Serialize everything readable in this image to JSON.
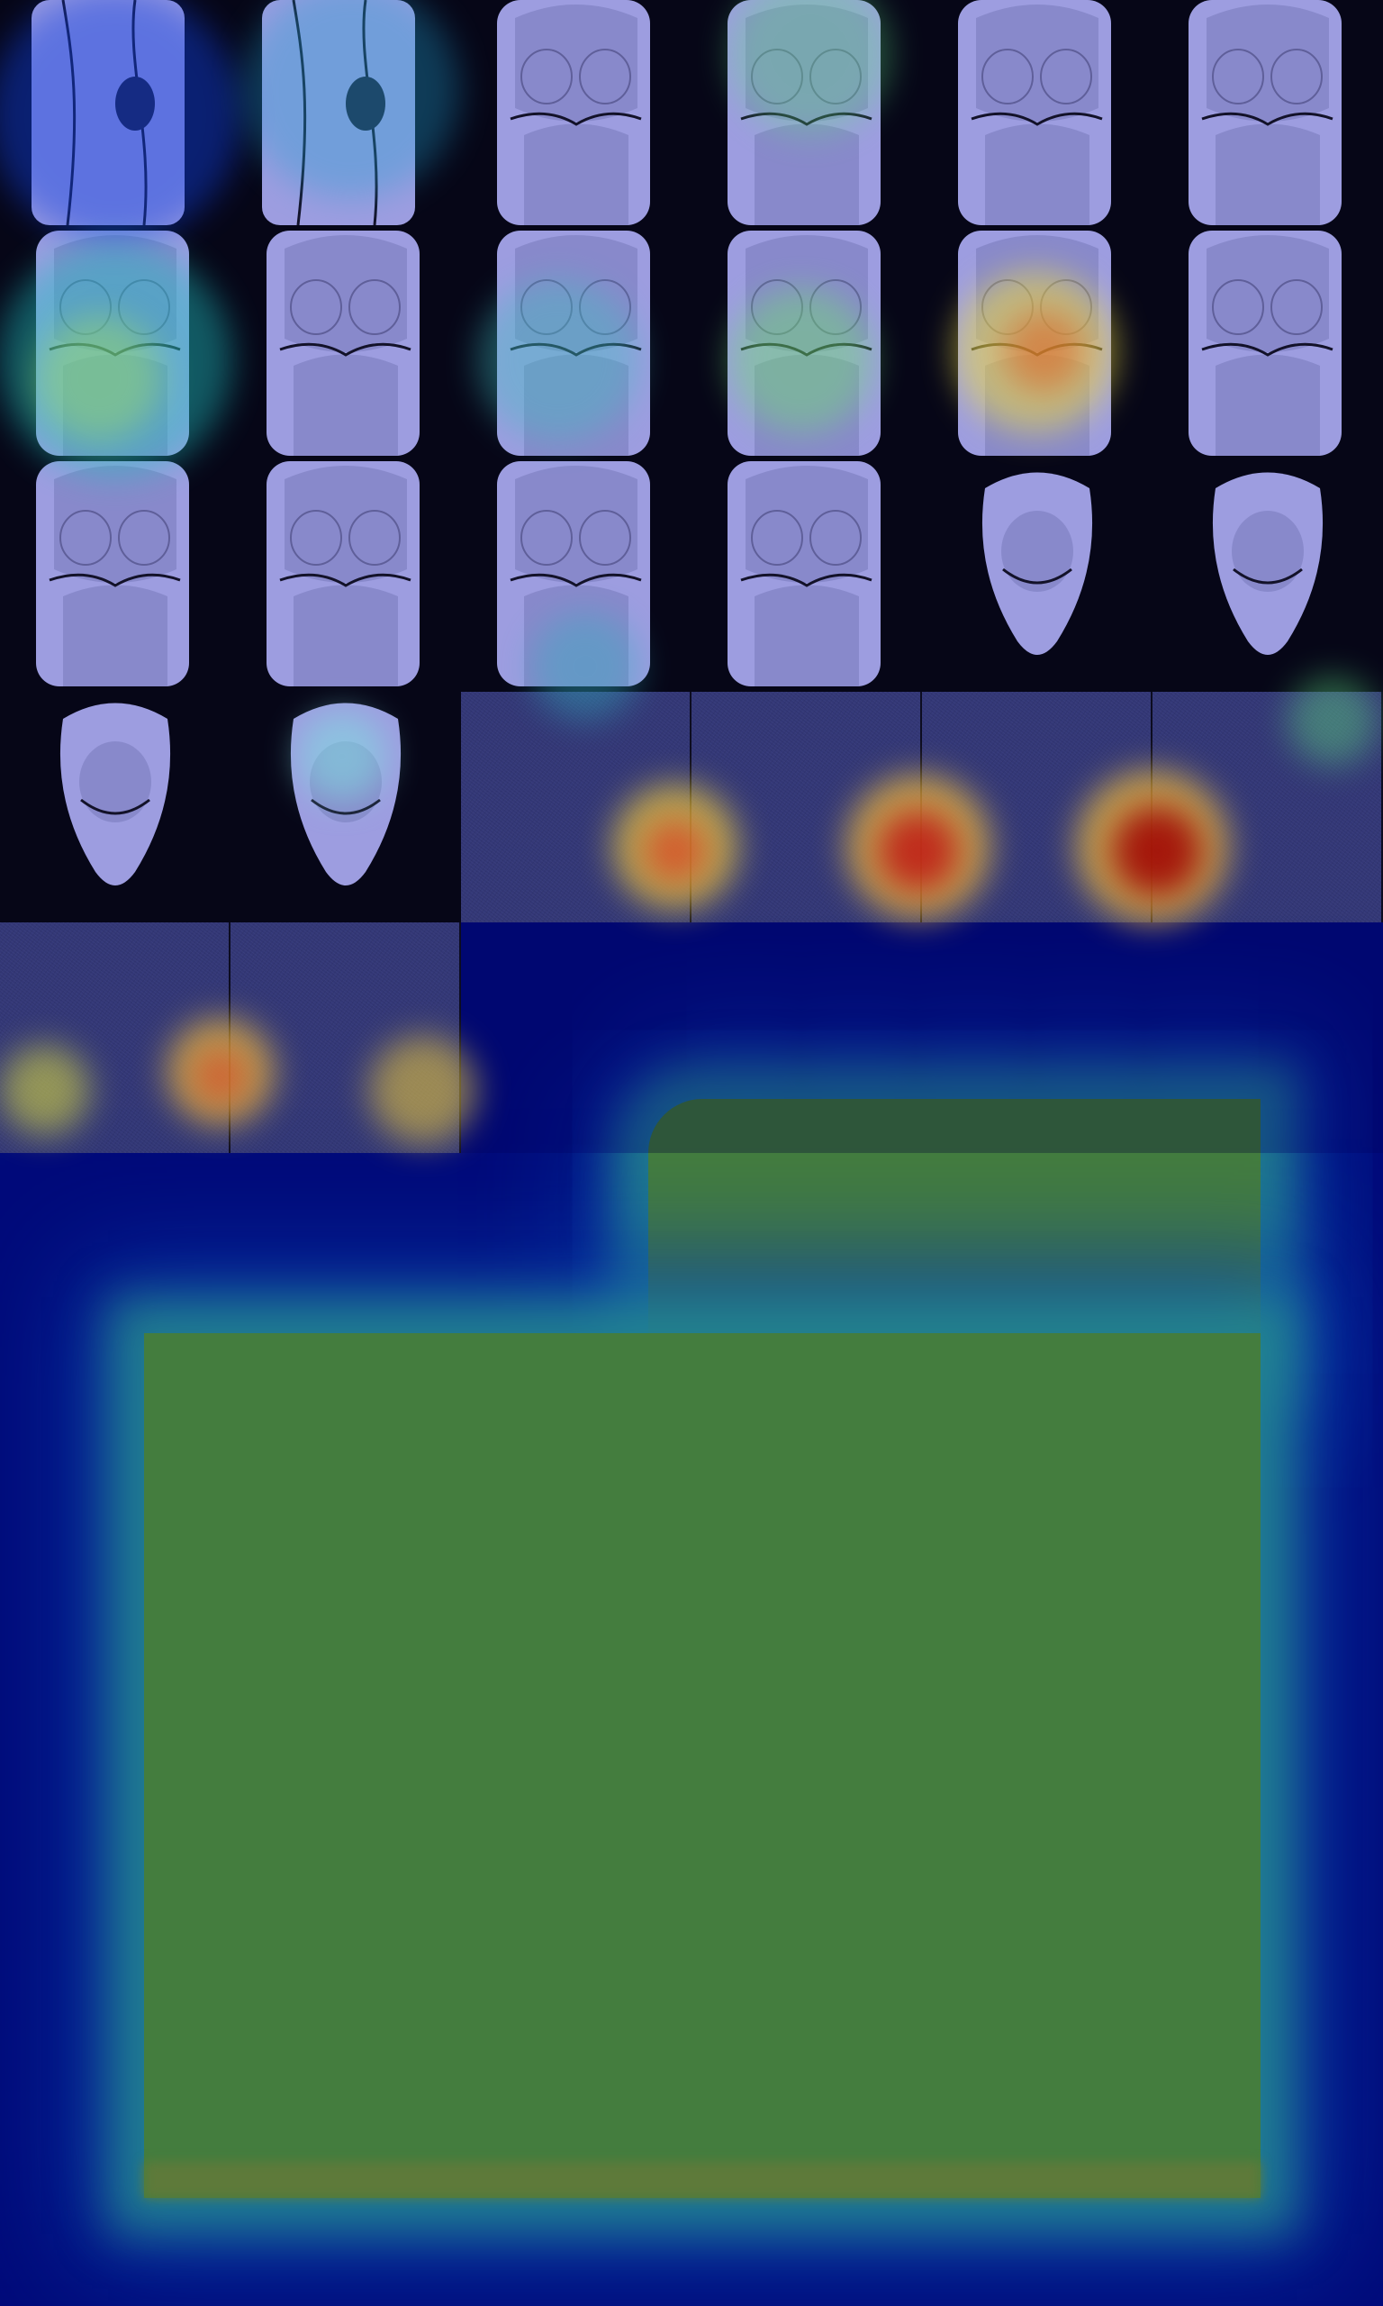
{
  "image": {
    "kind": "mri-knee-slice-grid-with-saliency-heatmap",
    "grid_columns": 6,
    "filled_tiles": 26,
    "colormap": [
      "#000a7a",
      "#1030d0",
      "#20b0d0",
      "#60e080",
      "#f0e040",
      "#e04020",
      "#a00000"
    ]
  },
  "tiles": [
    {
      "row": 0,
      "col": 0,
      "view": "sagittal"
    },
    {
      "row": 0,
      "col": 1,
      "view": "sagittal"
    },
    {
      "row": 0,
      "col": 2,
      "view": "coronal"
    },
    {
      "row": 0,
      "col": 3,
      "view": "coronal"
    },
    {
      "row": 0,
      "col": 4,
      "view": "coronal"
    },
    {
      "row": 0,
      "col": 5,
      "view": "coronal"
    },
    {
      "row": 1,
      "col": 0,
      "view": "coronal"
    },
    {
      "row": 1,
      "col": 1,
      "view": "coronal"
    },
    {
      "row": 1,
      "col": 2,
      "view": "coronal"
    },
    {
      "row": 1,
      "col": 3,
      "view": "coronal"
    },
    {
      "row": 1,
      "col": 4,
      "view": "coronal"
    },
    {
      "row": 1,
      "col": 5,
      "view": "coronal"
    },
    {
      "row": 2,
      "col": 0,
      "view": "coronal"
    },
    {
      "row": 2,
      "col": 1,
      "view": "coronal"
    },
    {
      "row": 2,
      "col": 2,
      "view": "coronal"
    },
    {
      "row": 2,
      "col": 3,
      "view": "coronal"
    },
    {
      "row": 2,
      "col": 4,
      "view": "patella"
    },
    {
      "row": 2,
      "col": 5,
      "view": "patella"
    },
    {
      "row": 3,
      "col": 0,
      "view": "patella"
    },
    {
      "row": 3,
      "col": 1,
      "view": "patella"
    },
    {
      "row": 3,
      "col": 2,
      "view": "noise"
    },
    {
      "row": 3,
      "col": 3,
      "view": "noise"
    },
    {
      "row": 3,
      "col": 4,
      "view": "noise"
    },
    {
      "row": 3,
      "col": 5,
      "view": "noise"
    },
    {
      "row": 4,
      "col": 0,
      "view": "noise"
    },
    {
      "row": 4,
      "col": 1,
      "view": "noise"
    }
  ]
}
